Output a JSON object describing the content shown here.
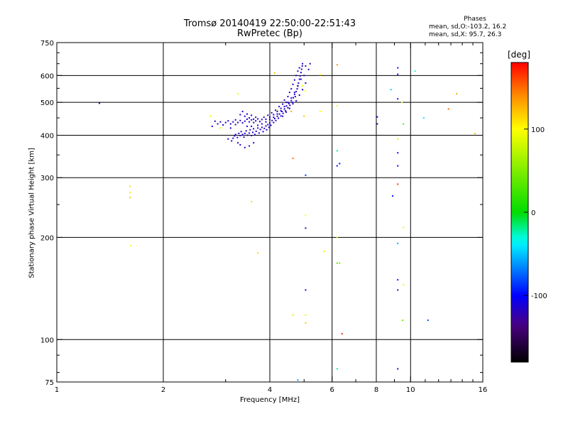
{
  "chart_data": {
    "type": "scatter",
    "title": "Tromsø 20140419 22:50:00-22:51:43",
    "subtitle": "RwPretec (Bp)",
    "stats": {
      "heading": "Phases",
      "line1": "mean, sd,O:-103.2, 16.2",
      "line2": "mean, sd,X:  95.7, 26.3"
    },
    "xlabel": "Frequency [MHz]",
    "ylabel": "Stationary phase Virtual Height [km]",
    "x_scale": "log",
    "y_scale": "log",
    "xlim": [
      1,
      16
    ],
    "ylim": [
      75,
      750
    ],
    "x_ticks": [
      {
        "v": 1,
        "label": "1"
      },
      {
        "v": 2,
        "label": "2"
      },
      {
        "v": 4,
        "label": "4"
      },
      {
        "v": 6,
        "label": "6"
      },
      {
        "v": 8,
        "label": "8"
      },
      {
        "v": 10,
        "label": "10"
      },
      {
        "v": 16,
        "label": "16"
      }
    ],
    "y_ticks": [
      {
        "v": 75,
        "label": "75"
      },
      {
        "v": 100,
        "label": "100"
      },
      {
        "v": 200,
        "label": "200"
      },
      {
        "v": 300,
        "label": "300"
      },
      {
        "v": 400,
        "label": "400"
      },
      {
        "v": 500,
        "label": "500"
      },
      {
        "v": 600,
        "label": "600"
      },
      {
        "v": 750,
        "label": "750"
      }
    ],
    "x_grid": [
      2,
      4,
      6,
      8,
      10
    ],
    "y_grid": [
      100,
      200,
      300,
      400,
      500,
      600
    ],
    "grid": true,
    "colorbar": {
      "label": "[deg]",
      "range": [
        -180,
        180
      ],
      "ticks": [
        {
          "v": 100,
          "label": "100"
        },
        {
          "v": 0,
          "label": "0"
        },
        {
          "v": -100,
          "label": "-100"
        }
      ]
    },
    "o_trace": {
      "phase": -115,
      "points": [
        [
          3.12,
          385
        ],
        [
          3.15,
          392
        ],
        [
          3.18,
          398
        ],
        [
          3.2,
          402
        ],
        [
          3.24,
          394
        ],
        [
          3.27,
          405
        ],
        [
          3.3,
          399
        ],
        [
          3.32,
          410
        ],
        [
          3.35,
          402
        ],
        [
          3.38,
          395
        ],
        [
          3.4,
          405
        ],
        [
          3.43,
          412
        ],
        [
          3.46,
          400
        ],
        [
          3.5,
          406
        ],
        [
          3.52,
          415
        ],
        [
          3.55,
          399
        ],
        [
          3.58,
          408
        ],
        [
          3.6,
          418
        ],
        [
          3.63,
          402
        ],
        [
          3.66,
          411
        ],
        [
          3.7,
          420
        ],
        [
          3.73,
          406
        ],
        [
          3.76,
          416
        ],
        [
          3.8,
          422
        ],
        [
          3.83,
          410
        ],
        [
          3.86,
          419
        ],
        [
          3.9,
          426
        ],
        [
          3.92,
          415
        ],
        [
          3.95,
          430
        ],
        [
          3.98,
          422
        ],
        [
          4.0,
          435
        ],
        [
          4.03,
          428
        ],
        [
          4.06,
          442
        ],
        [
          4.1,
          436
        ],
        [
          4.13,
          448
        ],
        [
          4.16,
          442
        ],
        [
          4.2,
          455
        ],
        [
          4.23,
          449
        ],
        [
          4.26,
          462
        ],
        [
          4.3,
          456
        ],
        [
          4.33,
          470
        ],
        [
          4.36,
          464
        ],
        [
          4.4,
          478
        ],
        [
          4.43,
          472
        ],
        [
          4.46,
          488
        ],
        [
          4.5,
          482
        ],
        [
          4.53,
          496
        ],
        [
          4.56,
          490
        ],
        [
          4.6,
          506
        ],
        [
          4.63,
          500
        ],
        [
          4.66,
          516
        ],
        [
          4.7,
          528
        ],
        [
          4.72,
          520
        ],
        [
          4.75,
          538
        ],
        [
          4.78,
          548
        ],
        [
          4.8,
          558
        ],
        [
          4.82,
          570
        ],
        [
          4.85,
          585
        ],
        [
          4.87,
          598
        ],
        [
          4.9,
          612
        ],
        [
          4.92,
          626
        ],
        [
          4.94,
          640
        ],
        [
          2.75,
          425
        ],
        [
          2.8,
          440
        ],
        [
          2.85,
          432
        ],
        [
          2.9,
          438
        ],
        [
          2.95,
          429
        ],
        [
          3.0,
          436
        ],
        [
          3.05,
          441
        ],
        [
          3.1,
          432
        ],
        [
          3.15,
          438
        ],
        [
          3.2,
          444
        ],
        [
          3.25,
          436
        ],
        [
          3.3,
          442
        ],
        [
          3.35,
          435
        ],
        [
          3.4,
          440
        ],
        [
          3.45,
          446
        ],
        [
          3.5,
          438
        ],
        [
          3.55,
          444
        ],
        [
          3.6,
          436
        ],
        [
          3.65,
          441
        ],
        [
          3.7,
          447
        ],
        [
          3.75,
          439
        ],
        [
          3.8,
          445
        ],
        [
          3.85,
          452
        ],
        [
          3.9,
          446
        ],
        [
          3.95,
          458
        ],
        [
          4.0,
          452
        ],
        [
          4.05,
          466
        ],
        [
          4.1,
          460
        ],
        [
          4.15,
          474
        ],
        [
          4.2,
          470
        ],
        [
          4.25,
          486
        ],
        [
          4.3,
          480
        ],
        [
          4.35,
          494
        ],
        [
          4.4,
          508
        ],
        [
          4.45,
          500
        ],
        [
          4.5,
          520
        ],
        [
          4.55,
          535
        ],
        [
          4.6,
          548
        ],
        [
          4.65,
          565
        ],
        [
          4.7,
          582
        ],
        [
          4.75,
          600
        ],
        [
          4.8,
          618
        ],
        [
          4.85,
          632
        ],
        [
          4.95,
          650
        ],
        [
          5.05,
          640
        ],
        [
          5.15,
          625
        ],
        [
          5.2,
          650
        ],
        [
          3.3,
          460
        ],
        [
          3.35,
          470
        ],
        [
          3.4,
          455
        ],
        [
          3.45,
          462
        ],
        [
          3.5,
          450
        ],
        [
          3.55,
          458
        ],
        [
          3.6,
          446
        ],
        [
          3.65,
          452
        ],
        [
          3.3,
          375
        ],
        [
          3.4,
          368
        ],
        [
          3.5,
          372
        ],
        [
          3.6,
          380
        ],
        [
          3.25,
          380
        ],
        [
          3.05,
          390
        ],
        [
          3.1,
          420
        ],
        [
          3.2,
          430
        ],
        [
          3.45,
          425
        ],
        [
          3.55,
          425
        ],
        [
          3.7,
          428
        ],
        [
          3.8,
          432
        ],
        [
          3.9,
          438
        ],
        [
          4.0,
          445
        ],
        [
          4.1,
          452
        ],
        [
          4.2,
          462
        ],
        [
          4.3,
          472
        ],
        [
          4.4,
          486
        ],
        [
          4.5,
          500
        ],
        [
          4.6,
          515
        ],
        [
          4.7,
          535
        ],
        [
          4.8,
          560
        ],
        [
          4.9,
          585
        ],
        [
          5.0,
          600
        ],
        [
          5.05,
          570
        ],
        [
          4.95,
          545
        ],
        [
          4.85,
          525
        ],
        [
          4.75,
          505
        ],
        [
          4.65,
          495
        ],
        [
          4.55,
          480
        ],
        [
          4.45,
          468
        ],
        [
          4.35,
          455
        ]
      ]
    },
    "scatter": [
      {
        "x": 1.32,
        "y": 497,
        "phase": -110
      },
      {
        "x": 1.61,
        "y": 283,
        "phase": 110
      },
      {
        "x": 1.61,
        "y": 271,
        "phase": 105
      },
      {
        "x": 1.61,
        "y": 262,
        "phase": 118
      },
      {
        "x": 1.62,
        "y": 189,
        "phase": 100
      },
      {
        "x": 2.72,
        "y": 455,
        "phase": 95
      },
      {
        "x": 2.9,
        "y": 420,
        "phase": 90
      },
      {
        "x": 3.25,
        "y": 530,
        "phase": 95
      },
      {
        "x": 3.55,
        "y": 255,
        "phase": 110
      },
      {
        "x": 3.7,
        "y": 180,
        "phase": 115
      },
      {
        "x": 4.13,
        "y": 610,
        "phase": 120
      },
      {
        "x": 4.2,
        "y": 475,
        "phase": 110
      },
      {
        "x": 4.6,
        "y": 470,
        "phase": 130
      },
      {
        "x": 4.65,
        "y": 342,
        "phase": 150
      },
      {
        "x": 4.65,
        "y": 118,
        "phase": 110
      },
      {
        "x": 4.8,
        "y": 76,
        "phase": -60
      },
      {
        "x": 4.95,
        "y": 560,
        "phase": 95
      },
      {
        "x": 5.0,
        "y": 540,
        "phase": 100
      },
      {
        "x": 5.0,
        "y": 455,
        "phase": 120
      },
      {
        "x": 5.05,
        "y": 305,
        "phase": -90
      },
      {
        "x": 5.05,
        "y": 232,
        "phase": 100
      },
      {
        "x": 5.05,
        "y": 213,
        "phase": -120
      },
      {
        "x": 5.05,
        "y": 140,
        "phase": -105
      },
      {
        "x": 5.05,
        "y": 118,
        "phase": 105
      },
      {
        "x": 5.05,
        "y": 112,
        "phase": 120
      },
      {
        "x": 5.55,
        "y": 603,
        "phase": 110
      },
      {
        "x": 5.55,
        "y": 470,
        "phase": 100
      },
      {
        "x": 5.7,
        "y": 182,
        "phase": 95
      },
      {
        "x": 6.2,
        "y": 645,
        "phase": 140
      },
      {
        "x": 6.2,
        "y": 488,
        "phase": 90
      },
      {
        "x": 6.2,
        "y": 360,
        "phase": -20
      },
      {
        "x": 6.2,
        "y": 325,
        "phase": -95
      },
      {
        "x": 6.2,
        "y": 200,
        "phase": 90
      },
      {
        "x": 6.2,
        "y": 168,
        "phase": 40
      },
      {
        "x": 6.2,
        "y": 82,
        "phase": -20
      },
      {
        "x": 6.3,
        "y": 330,
        "phase": -105
      },
      {
        "x": 6.3,
        "y": 168,
        "phase": 50
      },
      {
        "x": 6.4,
        "y": 104,
        "phase": 170
      },
      {
        "x": 8.05,
        "y": 453,
        "phase": -110
      },
      {
        "x": 8.05,
        "y": 432,
        "phase": -115
      },
      {
        "x": 8.8,
        "y": 545,
        "phase": -50
      },
      {
        "x": 8.9,
        "y": 265,
        "phase": -95
      },
      {
        "x": 9.2,
        "y": 632,
        "phase": -110
      },
      {
        "x": 9.2,
        "y": 605,
        "phase": -105
      },
      {
        "x": 9.2,
        "y": 512,
        "phase": -115
      },
      {
        "x": 9.2,
        "y": 390,
        "phase": 85
      },
      {
        "x": 9.2,
        "y": 355,
        "phase": -100
      },
      {
        "x": 9.2,
        "y": 325,
        "phase": -105
      },
      {
        "x": 9.2,
        "y": 287,
        "phase": 165
      },
      {
        "x": 9.2,
        "y": 192,
        "phase": -55
      },
      {
        "x": 9.2,
        "y": 150,
        "phase": -95
      },
      {
        "x": 9.2,
        "y": 140,
        "phase": -140
      },
      {
        "x": 9.2,
        "y": 82,
        "phase": -120
      },
      {
        "x": 9.45,
        "y": 500,
        "phase": 100
      },
      {
        "x": 9.55,
        "y": 432,
        "phase": 40
      },
      {
        "x": 9.55,
        "y": 214,
        "phase": 90
      },
      {
        "x": 9.55,
        "y": 145,
        "phase": 95
      },
      {
        "x": 9.5,
        "y": 114,
        "phase": 40
      },
      {
        "x": 10.3,
        "y": 618,
        "phase": -30
      },
      {
        "x": 10.9,
        "y": 450,
        "phase": -40
      },
      {
        "x": 11.2,
        "y": 114,
        "phase": -80
      },
      {
        "x": 12.8,
        "y": 478,
        "phase": 150
      },
      {
        "x": 13.5,
        "y": 530,
        "phase": 130
      },
      {
        "x": 15.2,
        "y": 405,
        "phase": 125
      }
    ]
  }
}
